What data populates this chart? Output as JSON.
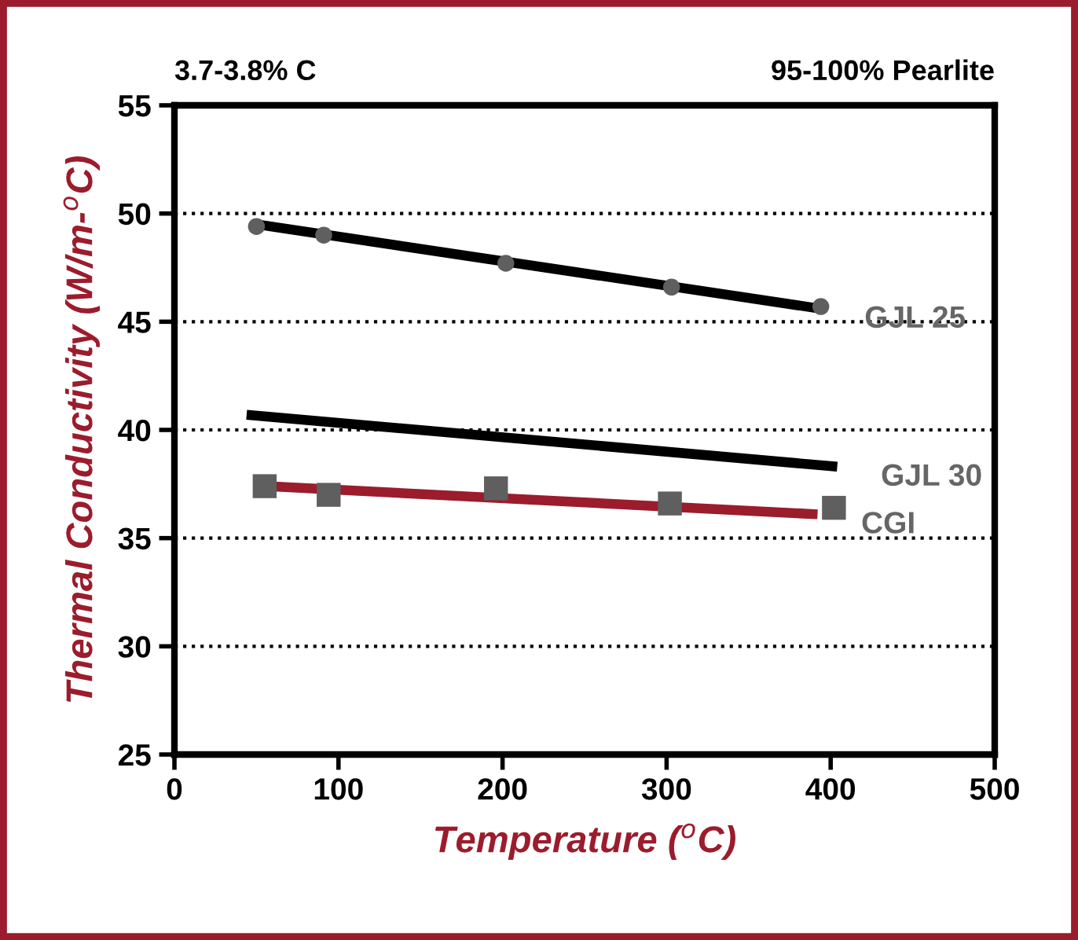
{
  "chart_data": {
    "type": "line",
    "xlabel": "Temperature ($^{o}$C)",
    "ylabel": "Thermal Conductivity (W/m-$^{o}$C)",
    "annotations": [
      "3.7-3.8% C",
      "95-100% Pearlite"
    ],
    "xlim": [
      0,
      500
    ],
    "xticks": [
      0,
      100,
      200,
      300,
      400,
      500
    ],
    "ylim": [
      25,
      55
    ],
    "yticks": [
      25,
      30,
      35,
      40,
      45,
      50,
      55
    ],
    "grid": "y",
    "legend": false,
    "series": [
      {
        "name": "GJL 25",
        "color": "#000000",
        "x": [
          50,
          394
        ],
        "values": [
          49.5,
          45.6
        ],
        "marker": "none",
        "line_style": "solid"
      },
      {
        "name": "GJL 30",
        "color": "#000000",
        "x": [
          44,
          404
        ],
        "values": [
          40.7,
          38.3
        ],
        "marker": "none",
        "line_style": "solid"
      },
      {
        "name": "CGI",
        "color": "#9b1c2c",
        "x": [
          56,
          392
        ],
        "values": [
          37.4,
          36.1
        ],
        "marker": "none",
        "line_style": "solid"
      },
      {
        "type": "scatter",
        "color": "#5f5f5f",
        "x": [
          50,
          91,
          202,
          303,
          394
        ],
        "values": [
          49.4,
          49.0,
          47.7,
          46.6,
          45.7
        ],
        "marker": "circle"
      },
      {
        "type": "scatter",
        "color": "#5f5f5f",
        "x": [
          55,
          94,
          196,
          302,
          402
        ],
        "values": [
          37.4,
          37.0,
          37.3,
          36.6,
          36.4
        ],
        "marker": "square"
      }
    ]
  }
}
